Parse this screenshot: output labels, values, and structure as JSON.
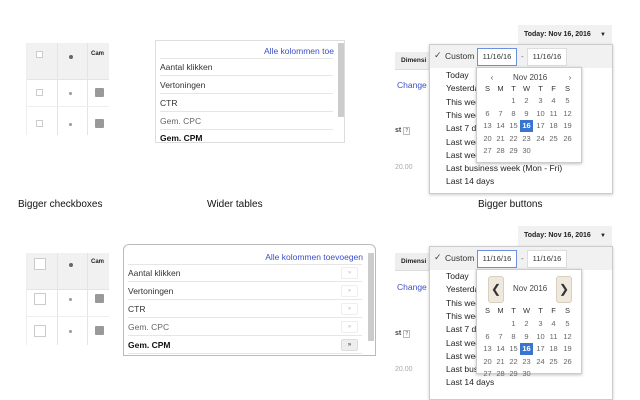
{
  "labels": {
    "checkboxes": "Bigger checkboxes",
    "tables": "Wider tables",
    "buttons": "Bigger buttons"
  },
  "table": {
    "campaign_header": "Cam"
  },
  "columns_panel": {
    "add_all_short": "Alle kolommen toe",
    "add_all": "Alle kolommen toevoegen",
    "items": [
      "Aantal klikken",
      "Vertoningen",
      "CTR",
      "Gem. CPC",
      "Gem. CPM"
    ],
    "arrow": "»"
  },
  "date": {
    "today_button": "Today: Nov 16, 2016",
    "caret": "▼",
    "check": "✓",
    "custom": "Custom",
    "start": "11/16/16",
    "end": "11/16/16",
    "dash": "-",
    "dimension_tab": "Dimensi",
    "change": "Change I",
    "stat_header": "st",
    "help": "?",
    "value": "20.00",
    "presets_top": [
      "Today",
      "Yesterda",
      "This wee",
      "This wee",
      "Last 7 da",
      "Last wee",
      "Last wee",
      "Last business week (Mon - Fri)",
      "Last 14 days"
    ],
    "presets_bottom": [
      "Today",
      "Yesterda",
      "This wee",
      "This wee",
      "Last 7 da",
      "Last wee",
      "Last wee",
      "Last bus",
      "Last 14 days"
    ],
    "calendar": {
      "month": "Nov 2016",
      "prev": "‹",
      "next": "›",
      "prev_big": "❮",
      "next_big": "❯",
      "weekdays": [
        "S",
        "M",
        "T",
        "W",
        "T",
        "F",
        "S"
      ],
      "first_weekday": 2,
      "days_in_month": 30,
      "selected": 16
    }
  },
  "colors": {
    "accent": "#3a74d1",
    "link": "#3b4fc9",
    "nav_button": "#efe8dd"
  }
}
